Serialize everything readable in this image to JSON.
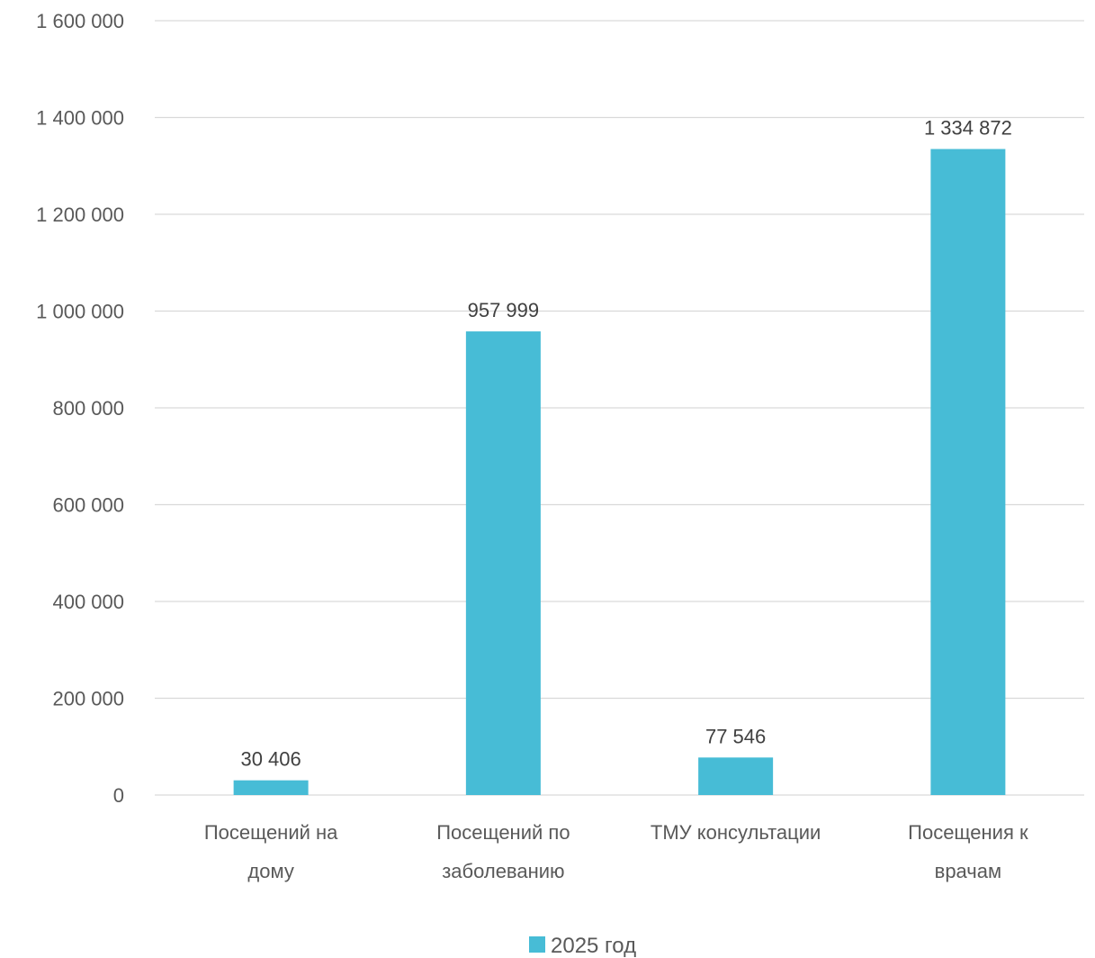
{
  "chart_data": {
    "type": "bar",
    "categories": [
      [
        "Посещений на",
        "дому"
      ],
      [
        "Посещений по",
        "заболеванию"
      ],
      [
        "ТМУ консультации"
      ],
      [
        "Посещения к",
        "врачам"
      ]
    ],
    "series": [
      {
        "name": "2025 год",
        "values": [
          30406,
          957999,
          77546,
          1334872
        ],
        "data_labels": [
          "30 406",
          "957 999",
          "77 546",
          "1 334 872"
        ],
        "color": "#47BCD6"
      }
    ],
    "ylim": [
      0,
      1600000
    ],
    "y_ticks": [
      0,
      200000,
      400000,
      600000,
      800000,
      1000000,
      1200000,
      1400000,
      1600000
    ],
    "y_tick_labels": [
      "0",
      "200 000",
      "400 000",
      "600 000",
      "800 000",
      "1 000 000",
      "1 200 000",
      "1 400 000",
      "1 600 000"
    ],
    "grid": true,
    "legend_position": "bottom",
    "title": "",
    "xlabel": "",
    "ylabel": ""
  }
}
